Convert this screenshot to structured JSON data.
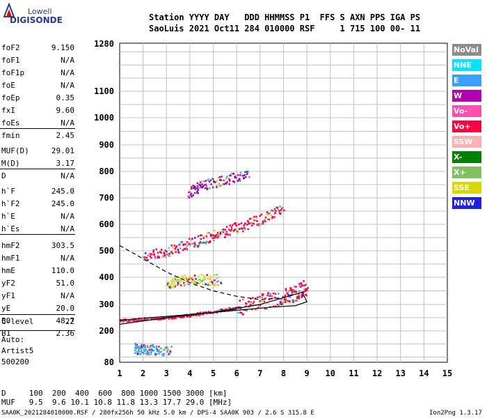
{
  "logo": {
    "top": "Lowell",
    "bottom": "DIGISONDE"
  },
  "header": {
    "line1": "Station YYYY DAY   DDD HHMMSS P1  FFS S AXN PPS IGA PS",
    "line2": "SaoLuis 2021 Oct11 284 010000 RSF     1 715 100 00- 11"
  },
  "params": [
    {
      "name": "foF2",
      "value": "9.150"
    },
    {
      "name": "foF1",
      "value": "N/A"
    },
    {
      "name": "foF1p",
      "value": "N/A"
    },
    {
      "name": "foE",
      "value": "N/A"
    },
    {
      "name": "foEp",
      "value": "0.35"
    },
    {
      "name": "fxI",
      "value": "9.60"
    },
    {
      "name": "foEs",
      "value": "N/A"
    },
    {
      "name": "fmin",
      "value": "2.45"
    },
    {
      "name": "MUF(D)",
      "value": "29.01"
    },
    {
      "name": "M(D)",
      "value": "3.17"
    },
    {
      "name": "D",
      "value": "N/A"
    },
    {
      "name": "h`F",
      "value": "245.0"
    },
    {
      "name": "h`F2",
      "value": "245.0"
    },
    {
      "name": "h`E",
      "value": "N/A"
    },
    {
      "name": "h`Es",
      "value": "N/A"
    },
    {
      "name": "hmF2",
      "value": "303.5"
    },
    {
      "name": "hmF1",
      "value": "N/A"
    },
    {
      "name": "hmE",
      "value": "110.0"
    },
    {
      "name": "yF2",
      "value": "51.0"
    },
    {
      "name": "yF1",
      "value": "N/A"
    },
    {
      "name": "yE",
      "value": "20.0"
    },
    {
      "name": "B0",
      "value": "48.7"
    },
    {
      "name": "B1",
      "value": "2.36"
    },
    {
      "name": "C-level",
      "value": "22"
    }
  ],
  "auto": [
    "Auto:",
    "Artist5",
    "500200"
  ],
  "legend": [
    {
      "label": "NoVal",
      "color": "#8c8c8c"
    },
    {
      "label": "NNE",
      "color": "#00e5ff"
    },
    {
      "label": "E",
      "color": "#3aa0ff"
    },
    {
      "label": "W",
      "color": "#b000b0"
    },
    {
      "label": "Vo-",
      "color": "#ff4fb0"
    },
    {
      "label": "Vo+",
      "color": "#ff0040"
    },
    {
      "label": "SSW",
      "color": "#ffb0b0"
    },
    {
      "label": "X-",
      "color": "#008000"
    },
    {
      "label": "X+",
      "color": "#80c060"
    },
    {
      "label": "SSE",
      "color": "#d8d800"
    },
    {
      "label": "NNW",
      "color": "#2020e0"
    }
  ],
  "footer": {
    "line1": "D     100  200  400  600  800 1000 1500 3000 [km]",
    "line2": "MUF   9.5  9.6 10.1 10.8 11.8 13.3 17.7 29.0 [MHz]",
    "file": "SAA0K_2021284010000.RSF / 280fx256h 50 kHz 5.0 km / DPS-4 SAA0K 903 / 2.6 S 315.8 E",
    "version": "Ion2Png 1.3.17"
  },
  "chart_data": {
    "type": "scatter",
    "xlim": [
      1,
      15
    ],
    "ylim": [
      80,
      1280
    ],
    "xticks": [
      "1",
      "2",
      "3",
      "4",
      "5",
      "6",
      "7",
      "8",
      "9",
      "10",
      "11",
      "12",
      "13",
      "14",
      "15"
    ],
    "yticks": [
      80,
      200,
      300,
      400,
      500,
      600,
      700,
      800,
      900,
      1000,
      1100,
      1280
    ],
    "yscale": "log",
    "grid": true,
    "traces": [
      {
        "name": "F trace",
        "color": "#ff0040",
        "points": [
          [
            1.0,
            240
          ],
          [
            2.0,
            248
          ],
          [
            3.0,
            252
          ],
          [
            4.0,
            262
          ],
          [
            5.0,
            275
          ],
          [
            6.0,
            290
          ],
          [
            7.0,
            310
          ],
          [
            8.0,
            330
          ],
          [
            8.5,
            345
          ],
          [
            9.0,
            370
          ]
        ]
      },
      {
        "name": "F2 second-hop",
        "color": "#ff0040",
        "points": [
          [
            2.0,
            480
          ],
          [
            3.0,
            500
          ],
          [
            4.0,
            530
          ],
          [
            5.0,
            560
          ],
          [
            6.0,
            590
          ],
          [
            7.0,
            620
          ],
          [
            8.0,
            660
          ]
        ]
      },
      {
        "name": "third-hop",
        "color": "#b000b0",
        "points": [
          [
            3.9,
            720
          ],
          [
            4.5,
            750
          ],
          [
            5.5,
            770
          ],
          [
            6.5,
            790
          ]
        ]
      },
      {
        "name": "Es cluster",
        "color": "#d8d800",
        "points": [
          [
            3.0,
            380
          ],
          [
            3.6,
            390
          ],
          [
            4.4,
            395
          ],
          [
            5.3,
            392
          ]
        ]
      },
      {
        "name": "low echoes",
        "color": "#3aa0ff",
        "points": [
          [
            1.6,
            135
          ],
          [
            2.0,
            132
          ],
          [
            2.4,
            130
          ],
          [
            3.2,
            128
          ]
        ]
      }
    ],
    "profile_dashed": [
      [
        1,
        520
      ],
      [
        2,
        470
      ],
      [
        3,
        420
      ],
      [
        4,
        380
      ],
      [
        5,
        350
      ],
      [
        6,
        330
      ],
      [
        7,
        318
      ],
      [
        8,
        325
      ],
      [
        9,
        350
      ]
    ],
    "profile_solid": [
      [
        1,
        225
      ],
      [
        3,
        250
      ],
      [
        5,
        270
      ],
      [
        7,
        300
      ],
      [
        8,
        325
      ],
      [
        8.8,
        345
      ],
      [
        9.0,
        310
      ],
      [
        8.5,
        295
      ],
      [
        7.5,
        290
      ],
      [
        6,
        278
      ],
      [
        4,
        262
      ],
      [
        2,
        248
      ],
      [
        1,
        240
      ]
    ]
  }
}
